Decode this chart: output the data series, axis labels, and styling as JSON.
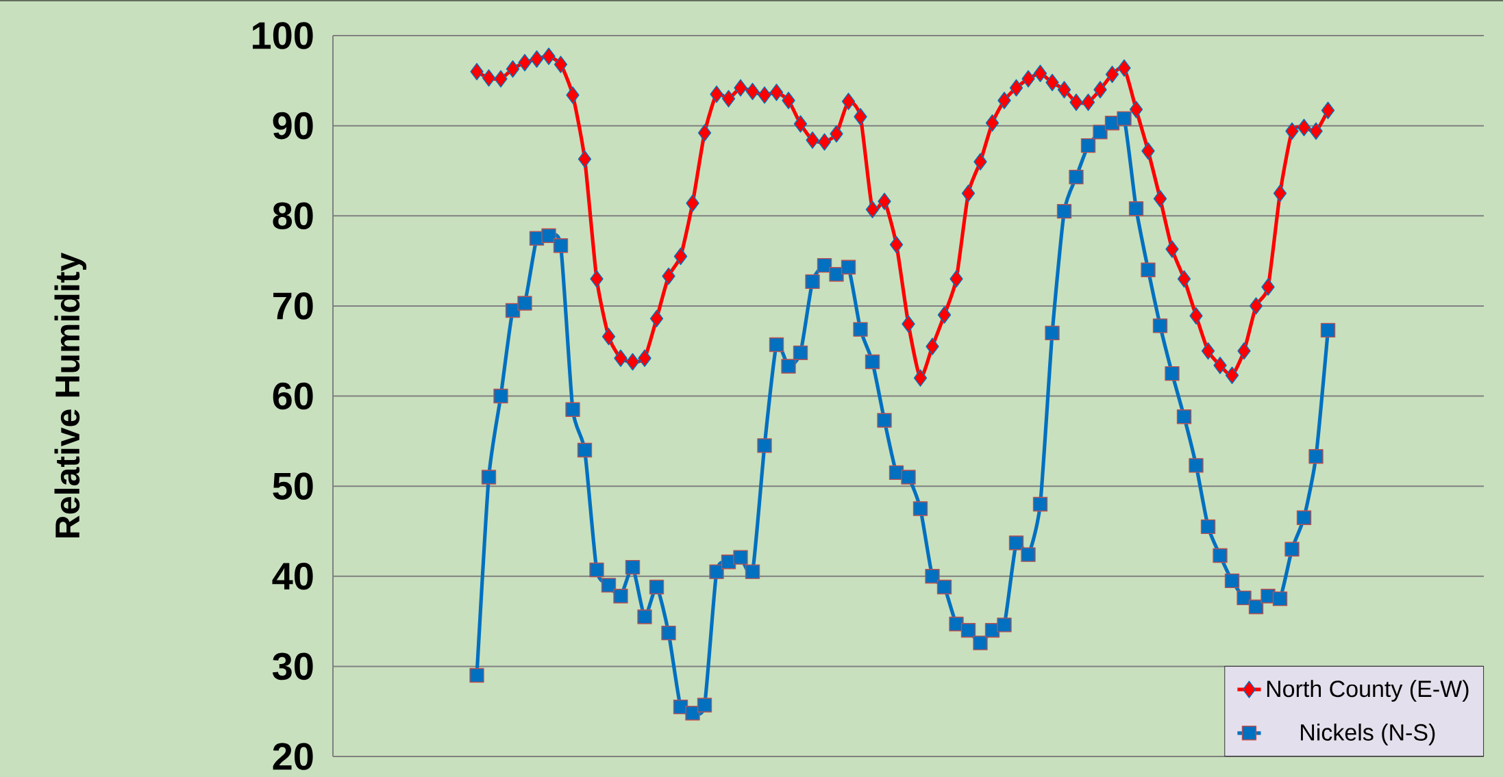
{
  "chart_data": {
    "type": "line",
    "ylabel": "Relative Humidity",
    "categories": [
      null,
      null,
      null,
      null,
      null,
      null,
      null,
      null,
      null,
      null,
      null,
      null,
      null,
      null,
      null,
      null,
      null,
      null,
      null,
      null,
      null,
      null,
      null,
      null,
      null,
      null,
      null,
      null,
      null,
      null,
      null,
      null,
      null,
      null,
      null,
      null,
      null,
      null,
      null,
      null,
      null,
      null,
      null,
      null,
      null,
      null,
      null,
      null,
      null,
      null,
      null,
      null,
      null,
      null,
      null,
      null,
      null,
      null,
      null,
      null,
      null,
      null,
      null,
      null,
      null,
      null,
      null,
      null,
      null,
      null,
      null,
      null,
      null,
      null,
      null,
      null,
      null,
      null,
      null,
      null,
      null,
      null,
      null,
      null,
      null,
      null,
      null,
      null,
      null,
      null,
      null,
      null,
      null,
      null,
      null,
      null,
      null
    ],
    "series": [
      {
        "name": "North County (E-W)",
        "color": "#ff0000",
        "marker": "diamond",
        "values": [
          null,
          null,
          null,
          null,
          null,
          null,
          null,
          null,
          null,
          null,
          null,
          null,
          96,
          95.3,
          95.2,
          96.3,
          97,
          97.4,
          97.7,
          96.8,
          93.4,
          86.3,
          73,
          66.6,
          64.2,
          63.8,
          64.2,
          68.6,
          73.3,
          75.5,
          81.4,
          89.2,
          93.5,
          93,
          94.2,
          93.8,
          93.4,
          93.7,
          92.8,
          90.2,
          88.4,
          88.2,
          89.1,
          92.7,
          91,
          80.7,
          81.6,
          76.8,
          68,
          62,
          65.5,
          69,
          73,
          82.5,
          86,
          90.3,
          92.8,
          94.2,
          95.2,
          95.8,
          94.8,
          94,
          92.6,
          92.6,
          94,
          95.7,
          96.4,
          91.8,
          87.2,
          81.9,
          76.3,
          73,
          68.9,
          65,
          63.4,
          62.3,
          65,
          70,
          72.1,
          82.5,
          89.4,
          89.8,
          89.4,
          91.7,
          null,
          null,
          null,
          null,
          null,
          null,
          null,
          null,
          null,
          null,
          null,
          null,
          null
        ]
      },
      {
        "name": "Nickels (N-S)",
        "color": "#0070c0",
        "marker": "square",
        "values": [
          null,
          null,
          null,
          null,
          null,
          null,
          null,
          null,
          null,
          null,
          null,
          null,
          29,
          51,
          60,
          69.5,
          70.3,
          77.5,
          77.8,
          76.7,
          58.5,
          54,
          40.7,
          39,
          37.8,
          41,
          35.5,
          38.8,
          33.7,
          25.5,
          24.8,
          25.7,
          40.5,
          41.6,
          42.1,
          40.5,
          54.5,
          65.7,
          63.3,
          64.8,
          72.7,
          74.5,
          73.5,
          74.3,
          67.4,
          63.8,
          57.3,
          51.5,
          51,
          47.5,
          40,
          38.8,
          34.7,
          34,
          32.6,
          34,
          34.6,
          43.7,
          42.4,
          48,
          67,
          80.5,
          84.3,
          87.8,
          89.3,
          90.3,
          90.8,
          80.8,
          74,
          67.8,
          62.5,
          57.7,
          52.3,
          45.5,
          42.3,
          39.5,
          37.6,
          36.6,
          37.8,
          37.5,
          43,
          46.5,
          53.3,
          67.3,
          null,
          null,
          null,
          null,
          null,
          null,
          null,
          null,
          null,
          null,
          null,
          null,
          null
        ]
      }
    ],
    "ylim": [
      20,
      100
    ],
    "yticks": [
      20,
      30,
      40,
      50,
      60,
      70,
      80,
      90,
      100
    ],
    "grid": "y",
    "legend": "bottom right"
  }
}
